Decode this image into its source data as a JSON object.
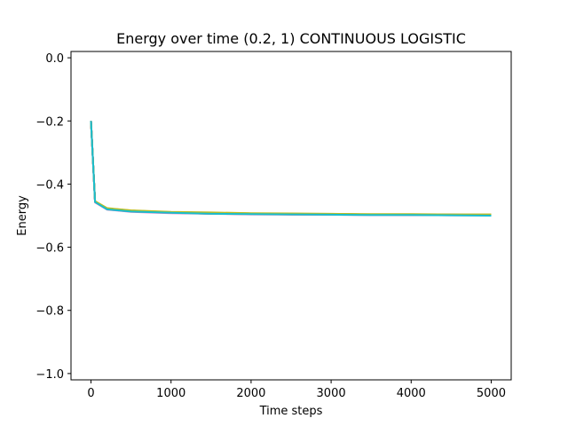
{
  "chart_data": {
    "type": "line",
    "title": "Energy over time (0.2, 1) CONTINUOUS LOGISTIC",
    "xlabel": "Time steps",
    "ylabel": "Energy",
    "xlim": [
      -250,
      5250
    ],
    "ylim": [
      -1.02,
      0.02
    ],
    "x_ticks": [
      0,
      1000,
      2000,
      3000,
      4000,
      5000
    ],
    "x_tick_labels": [
      "0",
      "1000",
      "2000",
      "3000",
      "4000",
      "5000"
    ],
    "y_ticks": [
      0.0,
      -0.2,
      -0.4,
      -0.6,
      -0.8,
      -1.0
    ],
    "y_tick_labels": [
      "0.0",
      "−0.2",
      "−0.4",
      "−0.6",
      "−0.8",
      "−1.0"
    ],
    "grid": false,
    "legend": "none",
    "series": [
      {
        "color": "#1f77b4",
        "values": [
          [
            0,
            -0.2
          ],
          [
            50,
            -0.455
          ],
          [
            200,
            -0.478
          ],
          [
            500,
            -0.485
          ],
          [
            1000,
            -0.49
          ],
          [
            1500,
            -0.492
          ],
          [
            2000,
            -0.494
          ],
          [
            2500,
            -0.495
          ],
          [
            3000,
            -0.496
          ],
          [
            3500,
            -0.496
          ],
          [
            4000,
            -0.497
          ],
          [
            4500,
            -0.497
          ],
          [
            5000,
            -0.498
          ]
        ]
      },
      {
        "color": "#ff7f0e",
        "values": [
          [
            0,
            -0.2
          ],
          [
            50,
            -0.456
          ],
          [
            200,
            -0.479
          ],
          [
            500,
            -0.486
          ],
          [
            1000,
            -0.491
          ],
          [
            1500,
            -0.493
          ],
          [
            2000,
            -0.494
          ],
          [
            2500,
            -0.495
          ],
          [
            3000,
            -0.495
          ],
          [
            3500,
            -0.496
          ],
          [
            4000,
            -0.497
          ],
          [
            4500,
            -0.497
          ],
          [
            5000,
            -0.497
          ]
        ]
      },
      {
        "color": "#2ca02c",
        "values": [
          [
            0,
            -0.2
          ],
          [
            50,
            -0.455
          ],
          [
            200,
            -0.477
          ],
          [
            500,
            -0.484
          ],
          [
            1000,
            -0.489
          ],
          [
            1500,
            -0.491
          ],
          [
            2000,
            -0.493
          ],
          [
            2500,
            -0.494
          ],
          [
            3000,
            -0.495
          ],
          [
            3500,
            -0.496
          ],
          [
            4000,
            -0.496
          ],
          [
            4500,
            -0.497
          ],
          [
            5000,
            -0.497
          ]
        ]
      },
      {
        "color": "#d62728",
        "values": [
          [
            0,
            -0.2
          ],
          [
            50,
            -0.457
          ],
          [
            200,
            -0.48
          ],
          [
            500,
            -0.487
          ],
          [
            1000,
            -0.491
          ],
          [
            1500,
            -0.494
          ],
          [
            2000,
            -0.495
          ],
          [
            2500,
            -0.496
          ],
          [
            3000,
            -0.497
          ],
          [
            3500,
            -0.497
          ],
          [
            4000,
            -0.498
          ],
          [
            4500,
            -0.498
          ],
          [
            5000,
            -0.499
          ]
        ]
      },
      {
        "color": "#9467bd",
        "values": [
          [
            0,
            -0.2
          ],
          [
            50,
            -0.456
          ],
          [
            200,
            -0.479
          ],
          [
            500,
            -0.486
          ],
          [
            1000,
            -0.49
          ],
          [
            1500,
            -0.493
          ],
          [
            2000,
            -0.494
          ],
          [
            2500,
            -0.496
          ],
          [
            3000,
            -0.497
          ],
          [
            3500,
            -0.498
          ],
          [
            4000,
            -0.498
          ],
          [
            4500,
            -0.498
          ],
          [
            5000,
            -0.499
          ]
        ]
      },
      {
        "color": "#8c564b",
        "values": [
          [
            0,
            -0.2
          ],
          [
            50,
            -0.455
          ],
          [
            200,
            -0.478
          ],
          [
            500,
            -0.485
          ],
          [
            1000,
            -0.489
          ],
          [
            1500,
            -0.492
          ],
          [
            2000,
            -0.493
          ],
          [
            2500,
            -0.495
          ],
          [
            3000,
            -0.495
          ],
          [
            3500,
            -0.496
          ],
          [
            4000,
            -0.497
          ],
          [
            4500,
            -0.497
          ],
          [
            5000,
            -0.498
          ]
        ]
      },
      {
        "color": "#e377c2",
        "values": [
          [
            0,
            -0.2
          ],
          [
            50,
            -0.458
          ],
          [
            200,
            -0.481
          ],
          [
            500,
            -0.488
          ],
          [
            1000,
            -0.492
          ],
          [
            1500,
            -0.494
          ],
          [
            2000,
            -0.496
          ],
          [
            2500,
            -0.497
          ],
          [
            3000,
            -0.497
          ],
          [
            3500,
            -0.498
          ],
          [
            4000,
            -0.498
          ],
          [
            4500,
            -0.499
          ],
          [
            5000,
            -0.499
          ]
        ]
      },
      {
        "color": "#7f7f7f",
        "values": [
          [
            0,
            -0.2
          ],
          [
            50,
            -0.456
          ],
          [
            200,
            -0.479
          ],
          [
            500,
            -0.486
          ],
          [
            1000,
            -0.49
          ],
          [
            1500,
            -0.493
          ],
          [
            2000,
            -0.494
          ],
          [
            2500,
            -0.495
          ],
          [
            3000,
            -0.496
          ],
          [
            3500,
            -0.497
          ],
          [
            4000,
            -0.497
          ],
          [
            4500,
            -0.498
          ],
          [
            5000,
            -0.498
          ]
        ]
      },
      {
        "color": "#bcbd22",
        "values": [
          [
            0,
            -0.2
          ],
          [
            50,
            -0.454
          ],
          [
            200,
            -0.476
          ],
          [
            500,
            -0.483
          ],
          [
            1000,
            -0.488
          ],
          [
            1500,
            -0.49
          ],
          [
            2000,
            -0.492
          ],
          [
            2500,
            -0.493
          ],
          [
            3000,
            -0.494
          ],
          [
            3500,
            -0.495
          ],
          [
            4000,
            -0.495
          ],
          [
            4500,
            -0.496
          ],
          [
            5000,
            -0.496
          ]
        ]
      },
      {
        "color": "#17becf",
        "values": [
          [
            0,
            -0.2
          ],
          [
            50,
            -0.457
          ],
          [
            200,
            -0.48
          ],
          [
            500,
            -0.487
          ],
          [
            1000,
            -0.491
          ],
          [
            1500,
            -0.494
          ],
          [
            2000,
            -0.495
          ],
          [
            2500,
            -0.496
          ],
          [
            3000,
            -0.497
          ],
          [
            3500,
            -0.498
          ],
          [
            4000,
            -0.498
          ],
          [
            4500,
            -0.499
          ],
          [
            5000,
            -0.5
          ]
        ]
      }
    ]
  }
}
